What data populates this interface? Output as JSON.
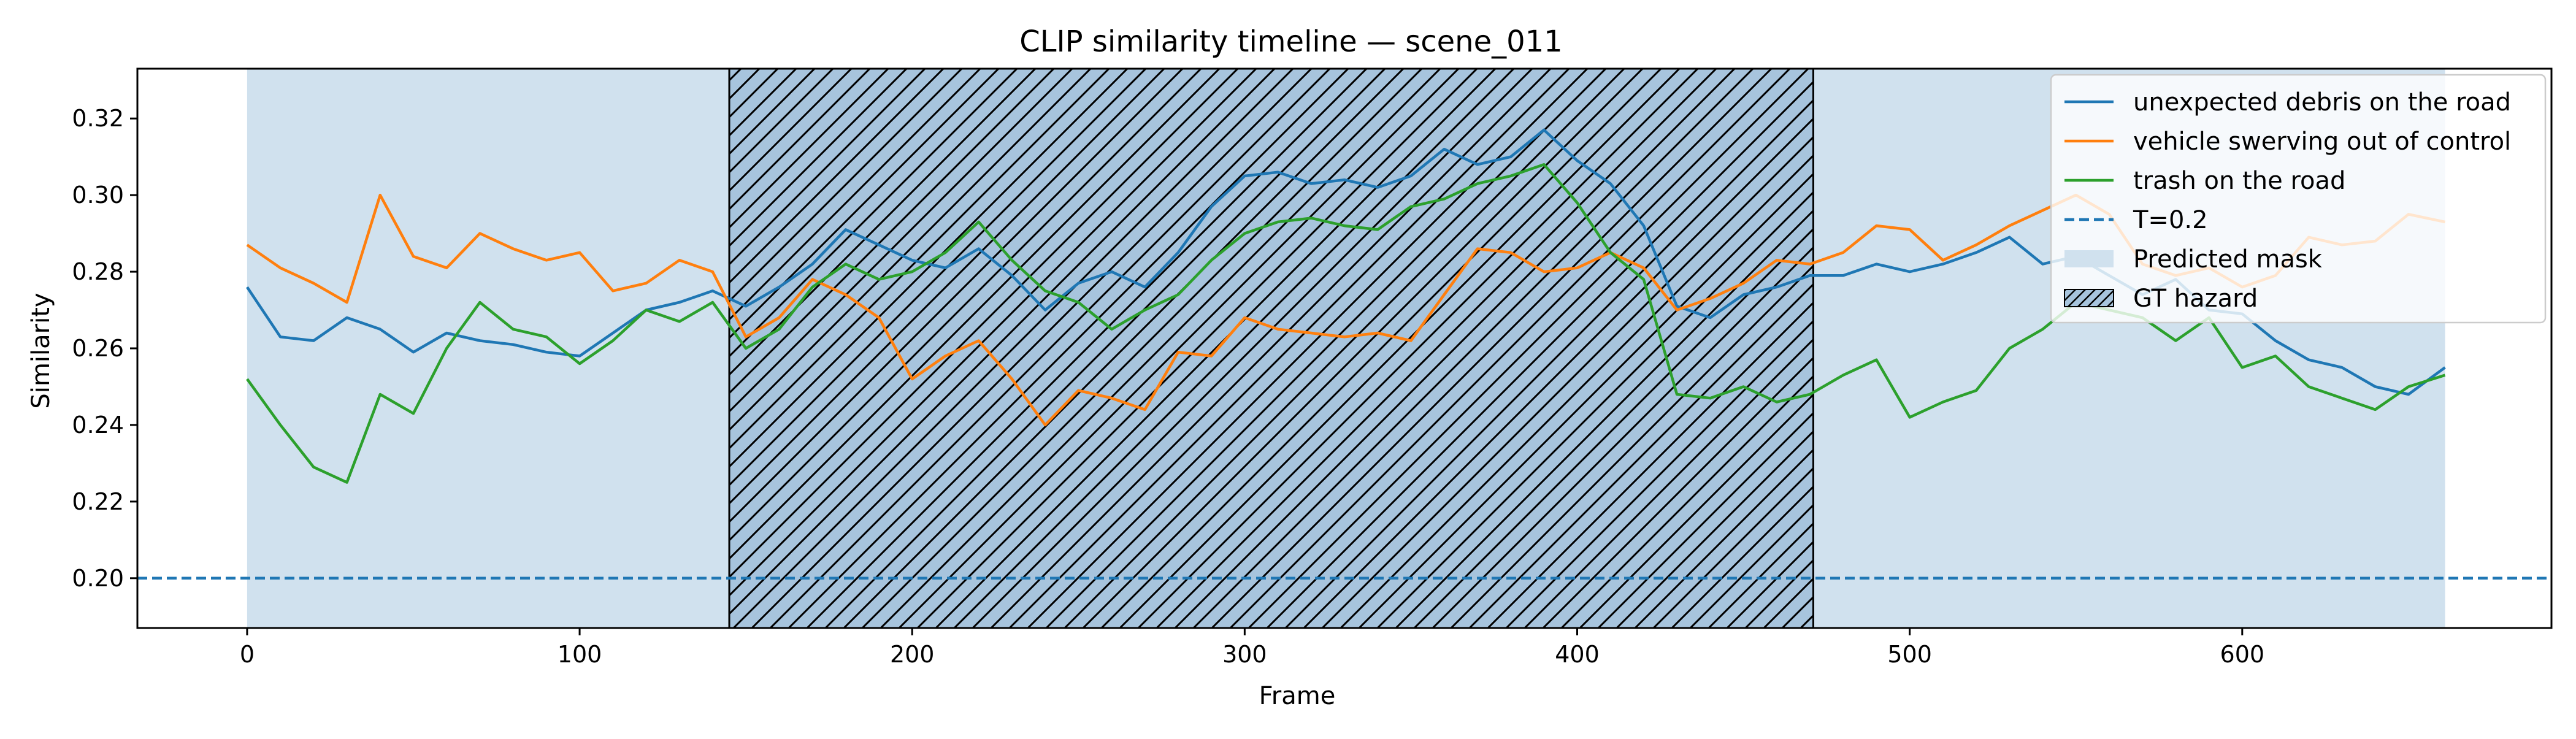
{
  "chart_data": {
    "type": "line",
    "title": "CLIP similarity timeline — scene_011",
    "xlabel": "Frame",
    "ylabel": "Similarity",
    "xlim": [
      -33,
      693
    ],
    "ylim": [
      0.187,
      0.333
    ],
    "x_ticks": [
      0,
      100,
      200,
      300,
      400,
      500,
      600
    ],
    "y_ticks": [
      0.2,
      0.22,
      0.24,
      0.26,
      0.28,
      0.3,
      0.32
    ],
    "grid": false,
    "legend_position": "top-right",
    "threshold": {
      "label": "T=0.2",
      "value": 0.2,
      "color": "#1f77b4"
    },
    "predicted_mask": {
      "label": "Predicted mask",
      "start": 0,
      "end": 661,
      "color": "#d0e1ee"
    },
    "gt_hazard": {
      "label": "GT hazard",
      "start": 145,
      "end": 471,
      "color": "#a7c4dd"
    },
    "series": [
      {
        "name": "unexpected debris on the road",
        "color": "#1f77b4",
        "x": [
          0,
          10,
          20,
          30,
          40,
          50,
          60,
          70,
          80,
          90,
          100,
          110,
          120,
          130,
          140,
          150,
          160,
          170,
          180,
          190,
          200,
          210,
          220,
          230,
          240,
          250,
          260,
          270,
          280,
          290,
          300,
          310,
          320,
          330,
          340,
          350,
          360,
          370,
          380,
          390,
          400,
          410,
          420,
          430,
          440,
          450,
          460,
          470,
          480,
          490,
          500,
          510,
          520,
          530,
          540,
          550,
          560,
          570,
          580,
          590,
          600,
          610,
          620,
          630,
          640,
          650,
          661
        ],
        "values": [
          0.276,
          0.263,
          0.262,
          0.268,
          0.265,
          0.259,
          0.264,
          0.262,
          0.261,
          0.259,
          0.258,
          0.264,
          0.27,
          0.272,
          0.275,
          0.271,
          0.276,
          0.282,
          0.291,
          0.287,
          0.283,
          0.281,
          0.286,
          0.279,
          0.27,
          0.277,
          0.28,
          0.276,
          0.285,
          0.297,
          0.305,
          0.306,
          0.303,
          0.304,
          0.302,
          0.305,
          0.312,
          0.308,
          0.31,
          0.317,
          0.309,
          0.303,
          0.292,
          0.271,
          0.268,
          0.274,
          0.276,
          0.279,
          0.279,
          0.282,
          0.28,
          0.282,
          0.285,
          0.289,
          0.282,
          0.284,
          0.279,
          0.274,
          0.278,
          0.27,
          0.269,
          0.262,
          0.257,
          0.255,
          0.25,
          0.248,
          0.255
        ]
      },
      {
        "name": "vehicle swerving out of control",
        "color": "#ff7f0e",
        "x": [
          0,
          10,
          20,
          30,
          40,
          50,
          60,
          70,
          80,
          90,
          100,
          110,
          120,
          130,
          140,
          150,
          160,
          170,
          180,
          190,
          200,
          210,
          220,
          230,
          240,
          250,
          260,
          270,
          280,
          290,
          300,
          310,
          320,
          330,
          340,
          350,
          360,
          370,
          380,
          390,
          400,
          410,
          420,
          430,
          440,
          450,
          460,
          470,
          480,
          490,
          500,
          510,
          520,
          530,
          540,
          550,
          560,
          570,
          580,
          590,
          600,
          610,
          620,
          630,
          640,
          650,
          661
        ],
        "values": [
          0.287,
          0.281,
          0.277,
          0.272,
          0.3,
          0.284,
          0.281,
          0.29,
          0.286,
          0.283,
          0.285,
          0.275,
          0.277,
          0.283,
          0.28,
          0.263,
          0.268,
          0.278,
          0.274,
          0.268,
          0.252,
          0.258,
          0.262,
          0.252,
          0.24,
          0.249,
          0.247,
          0.244,
          0.259,
          0.258,
          0.268,
          0.265,
          0.264,
          0.263,
          0.264,
          0.262,
          0.274,
          0.286,
          0.285,
          0.28,
          0.281,
          0.285,
          0.281,
          0.27,
          0.273,
          0.277,
          0.283,
          0.282,
          0.285,
          0.292,
          0.291,
          0.283,
          0.287,
          0.292,
          0.296,
          0.3,
          0.295,
          0.282,
          0.279,
          0.281,
          0.276,
          0.279,
          0.289,
          0.287,
          0.288,
          0.295,
          0.293
        ]
      },
      {
        "name": "trash on the road",
        "color": "#2ca02c",
        "x": [
          0,
          10,
          20,
          30,
          40,
          50,
          60,
          70,
          80,
          90,
          100,
          110,
          120,
          130,
          140,
          150,
          160,
          170,
          180,
          190,
          200,
          210,
          220,
          230,
          240,
          250,
          260,
          270,
          280,
          290,
          300,
          310,
          320,
          330,
          340,
          350,
          360,
          370,
          380,
          390,
          400,
          410,
          420,
          430,
          440,
          450,
          460,
          470,
          480,
          490,
          500,
          510,
          520,
          530,
          540,
          550,
          560,
          570,
          580,
          590,
          600,
          610,
          620,
          630,
          640,
          650,
          661
        ],
        "values": [
          0.252,
          0.24,
          0.229,
          0.225,
          0.248,
          0.243,
          0.26,
          0.272,
          0.265,
          0.263,
          0.256,
          0.262,
          0.27,
          0.267,
          0.272,
          0.26,
          0.265,
          0.276,
          0.282,
          0.278,
          0.28,
          0.285,
          0.293,
          0.283,
          0.275,
          0.272,
          0.265,
          0.27,
          0.274,
          0.283,
          0.29,
          0.293,
          0.294,
          0.292,
          0.291,
          0.297,
          0.299,
          0.303,
          0.305,
          0.308,
          0.298,
          0.285,
          0.278,
          0.248,
          0.247,
          0.25,
          0.246,
          0.248,
          0.253,
          0.257,
          0.242,
          0.246,
          0.249,
          0.26,
          0.265,
          0.272,
          0.27,
          0.268,
          0.262,
          0.268,
          0.255,
          0.258,
          0.25,
          0.247,
          0.244,
          0.25,
          0.253
        ]
      }
    ]
  }
}
